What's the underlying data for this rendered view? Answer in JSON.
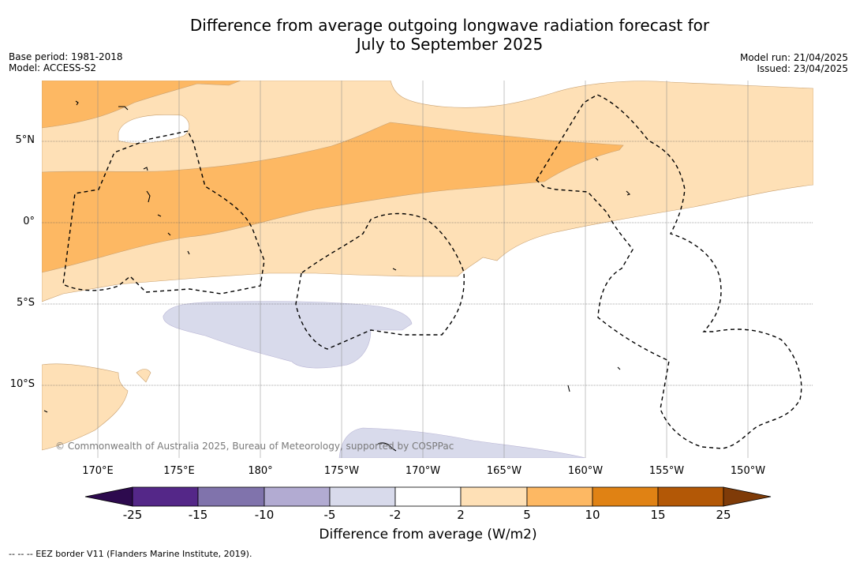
{
  "title_line1": "Difference from average outgoing longwave radiation forecast for",
  "title_line2": "July to September 2025",
  "base_period": "Base period: 1981-2018",
  "model": "Model: ACCESS-S2",
  "model_run": "Model run: 21/04/2025",
  "issued": "Issued: 23/04/2025",
  "copyright": "© Commonwealth of Australia 2025, Bureau of Meteorology, supported by COSPPac",
  "footnote": "--  --  -- EEZ border V11 (Flanders Marine Institute, 2019).",
  "lon_labels": [
    "170°E",
    "175°E",
    "180°",
    "175°W",
    "170°W",
    "165°W",
    "160°W",
    "155°W",
    "150°W"
  ],
  "lat_labels": [
    "5°N",
    "0°",
    "5°S",
    "10°S"
  ],
  "colorbar": {
    "label": "Difference from average (W/m2)",
    "ticks": [
      "-25",
      "-15",
      "-10",
      "-5",
      "-2",
      "2",
      "5",
      "10",
      "15",
      "25"
    ],
    "colors": {
      "below_-25": "#2d0a4e",
      "-25_-15": "#542788",
      "-15_-10": "#8073ac",
      "-10_-5": "#b2abd2",
      "-5_-2": "#d8daeb",
      "-2_2": "#ffffff",
      "2_5": "#fee0b6",
      "5_10": "#fdb863",
      "10_15": "#e08214",
      "15_25": "#b35806",
      "above_25": "#7f3b08"
    }
  }
}
